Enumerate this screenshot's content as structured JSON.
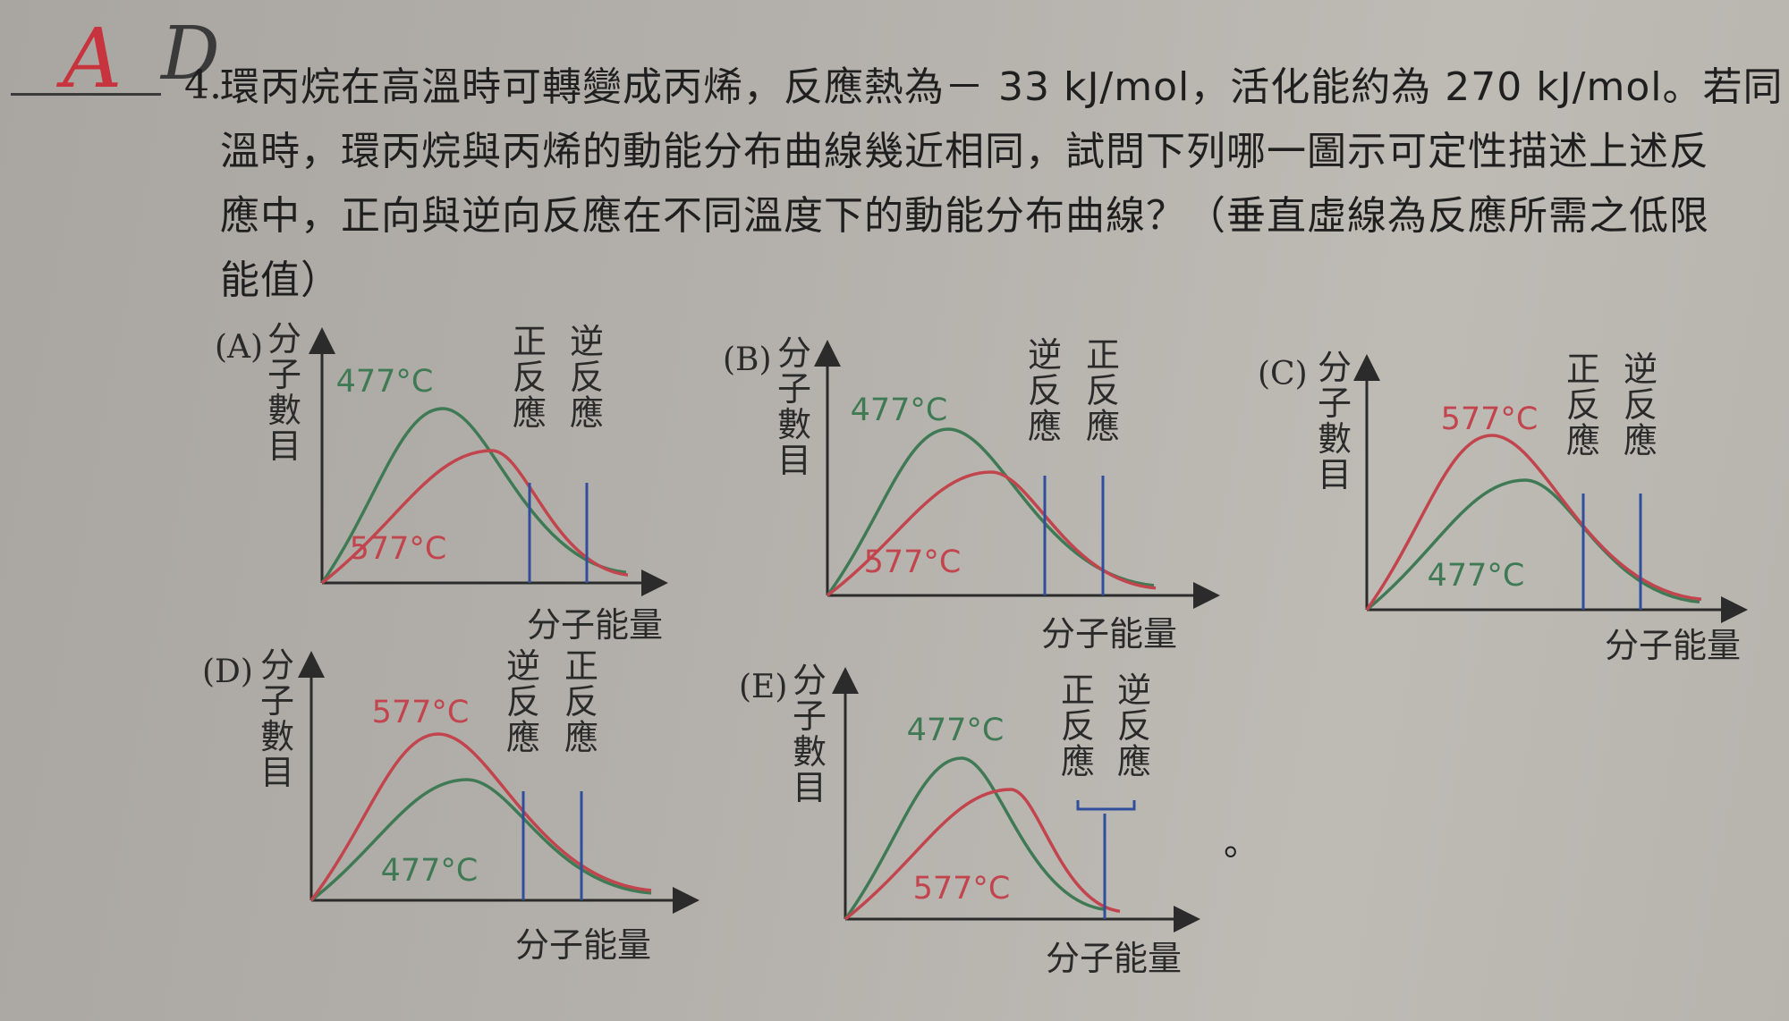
{
  "handwriting": {
    "mark_a": "A",
    "mark_d": "D"
  },
  "question": {
    "number": "4.",
    "lines": [
      "環丙烷在高溫時可轉變成丙烯，反應熱為－ 33 kJ/mol，活化能約為 270 kJ/mol。若同",
      "溫時，環丙烷與丙烯的動能分布曲線幾近相同，試問下列哪一圖示可定性描述上述反",
      "應中，正向與逆向反應在不同溫度下的動能分布曲線？（垂直虛線為反應所需之低限",
      "能值）"
    ]
  },
  "axis_labels": {
    "y": [
      "分",
      "子",
      "數",
      "目"
    ],
    "x": "分子能量"
  },
  "reaction_labels": {
    "forward": [
      "正",
      "反",
      "應"
    ],
    "reverse": [
      "逆",
      "反",
      "應"
    ]
  },
  "options": [
    {
      "id": "(A)",
      "green_temp": "477°C",
      "red_temp": "577°C",
      "left_line": "forward",
      "right_line": "reverse"
    },
    {
      "id": "(B)",
      "green_temp": "477°C",
      "red_temp": "577°C",
      "left_line": "reverse",
      "right_line": "forward"
    },
    {
      "id": "(C)",
      "green_temp": "477°C",
      "red_temp": "577°C",
      "left_line": "forward",
      "right_line": "reverse"
    },
    {
      "id": "(D)",
      "green_temp": "477°C",
      "red_temp": "577°C",
      "left_line": "reverse",
      "right_line": "forward"
    },
    {
      "id": "(E)",
      "green_temp": "477°C",
      "red_temp": "577°C",
      "left_line": "forward",
      "right_line": "reverse"
    }
  ],
  "trailing_mark": "。",
  "colors": {
    "green_curve": "#3f7a55",
    "red_curve": "#c2454e",
    "threshold_line": "#2f4f9c",
    "handwriting_red": "#c8343d"
  }
}
